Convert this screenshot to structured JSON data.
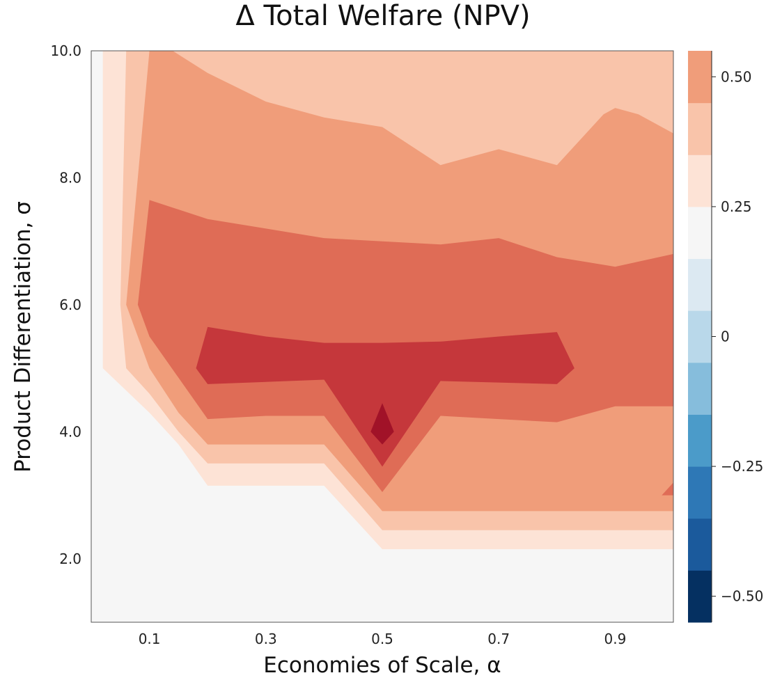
{
  "chart_data": {
    "type": "heatmap",
    "title": "Δ Total Welfare (NPV)",
    "xlabel": "Economies of Scale, α",
    "ylabel": "Product Differentiation, σ",
    "xlim": [
      0.0,
      1.0
    ],
    "ylim": [
      1.0,
      10.0
    ],
    "x_ticks": [
      0.1,
      0.3,
      0.5,
      0.7,
      0.9
    ],
    "x_tick_labels": [
      "0.1",
      "0.3",
      "0.5",
      "0.7",
      "0.9"
    ],
    "y_ticks": [
      2.0,
      4.0,
      6.0,
      8.0,
      10.0
    ],
    "y_tick_labels": [
      "2.0",
      "4.0",
      "6.0",
      "8.0",
      "10.0"
    ],
    "colorbar": {
      "range": [
        -0.55,
        0.55
      ],
      "ticks": [
        0.5,
        0.25,
        0,
        -0.25,
        -0.5
      ],
      "tick_labels": [
        "0.50",
        "0.25",
        "0",
        "−0.25",
        "−0.50"
      ],
      "levels": [
        -0.55,
        -0.45,
        -0.35,
        -0.25,
        -0.15,
        -0.05,
        0.05,
        0.15,
        0.25,
        0.35,
        0.45,
        0.55
      ],
      "colors": [
        "#053061",
        "#1b5a9c",
        "#2e78b6",
        "#4b9bc9",
        "#86bddc",
        "#b9d8ea",
        "#dce9f2",
        "#f6f6f6",
        "#fde3d6",
        "#f9c4aa",
        "#f09d7a",
        "#df6c56",
        "#c5373b",
        "#a11228",
        "#6a0020"
      ],
      "step_values": [
        -0.5,
        -0.43,
        -0.36,
        -0.29,
        -0.22,
        -0.14,
        -0.07,
        0.0,
        0.07,
        0.14,
        0.21,
        0.29,
        0.36,
        0.43,
        0.5
      ]
    },
    "regions": [
      {
        "level": 0.07,
        "polygon": [
          [
            0.02,
            10.0
          ],
          [
            1.0,
            10.0
          ],
          [
            1.0,
            2.15
          ],
          [
            0.5,
            2.15
          ],
          [
            0.4,
            3.15
          ],
          [
            0.2,
            3.15
          ],
          [
            0.15,
            3.8
          ],
          [
            0.1,
            4.3
          ],
          [
            0.02,
            5.0
          ]
        ]
      },
      {
        "level": 0.14,
        "polygon": [
          [
            0.06,
            10.0
          ],
          [
            1.0,
            10.0
          ],
          [
            1.0,
            2.45
          ],
          [
            0.5,
            2.45
          ],
          [
            0.4,
            3.5
          ],
          [
            0.2,
            3.5
          ],
          [
            0.15,
            4.0
          ],
          [
            0.1,
            4.6
          ],
          [
            0.06,
            5.0
          ],
          [
            0.05,
            6.0
          ]
        ]
      },
      {
        "level": 0.21,
        "polygon": [
          [
            0.1,
            10.0
          ],
          [
            1.0,
            10.0
          ],
          [
            1.0,
            2.75
          ],
          [
            0.5,
            2.75
          ],
          [
            0.4,
            3.8
          ],
          [
            0.2,
            3.8
          ],
          [
            0.15,
            4.3
          ],
          [
            0.1,
            5.0
          ],
          [
            0.06,
            6.0
          ]
        ]
      },
      {
        "level": 0.29,
        "polygon": [
          [
            0.1,
            7.65
          ],
          [
            0.2,
            7.35
          ],
          [
            0.3,
            7.2
          ],
          [
            0.4,
            7.05
          ],
          [
            0.5,
            7.0
          ],
          [
            0.6,
            6.95
          ],
          [
            0.7,
            7.05
          ],
          [
            0.8,
            6.75
          ],
          [
            0.9,
            6.6
          ],
          [
            1.0,
            6.8
          ],
          [
            1.0,
            4.4
          ],
          [
            0.9,
            4.4
          ],
          [
            0.8,
            4.15
          ],
          [
            0.7,
            4.2
          ],
          [
            0.6,
            4.25
          ],
          [
            0.5,
            3.05
          ],
          [
            0.4,
            4.25
          ],
          [
            0.3,
            4.25
          ],
          [
            0.2,
            4.2
          ],
          [
            0.1,
            5.5
          ],
          [
            0.08,
            6.0
          ]
        ]
      },
      {
        "level": 0.36,
        "polygon": [
          [
            0.2,
            5.65
          ],
          [
            0.3,
            5.5
          ],
          [
            0.4,
            5.4
          ],
          [
            0.5,
            5.4
          ],
          [
            0.6,
            5.42
          ],
          [
            0.7,
            5.5
          ],
          [
            0.8,
            5.57
          ],
          [
            0.83,
            5.0
          ],
          [
            0.8,
            4.75
          ],
          [
            0.6,
            4.8
          ],
          [
            0.5,
            3.45
          ],
          [
            0.4,
            4.82
          ],
          [
            0.2,
            4.75
          ],
          [
            0.18,
            5.0
          ]
        ]
      },
      {
        "level": 0.43,
        "polygon": [
          [
            0.5,
            4.45
          ],
          [
            0.52,
            4.0
          ],
          [
            0.5,
            3.8
          ],
          [
            0.48,
            4.0
          ]
        ]
      },
      {
        "level": 0.29,
        "polygon": [
          [
            1.0,
            3.2
          ],
          [
            1.0,
            3.0
          ],
          [
            0.98,
            3.0
          ]
        ]
      },
      {
        "level": 0.14,
        "polygon": [
          [
            0.6,
            9.65
          ],
          [
            0.67,
            9.0
          ],
          [
            0.6,
            8.55
          ],
          [
            0.55,
            9.0
          ]
        ]
      },
      {
        "level": 0.14,
        "polygon": [
          [
            0.8,
            9.85
          ],
          [
            0.84,
            9.0
          ],
          [
            0.8,
            8.6
          ],
          [
            0.73,
            9.0
          ]
        ]
      },
      {
        "level": 0.21,
        "polygon": [
          [
            1.0,
            8.7
          ],
          [
            0.94,
            9.0
          ],
          [
            0.9,
            9.1
          ],
          [
            0.88,
            9.0
          ],
          [
            0.8,
            8.2
          ],
          [
            0.7,
            8.45
          ],
          [
            0.6,
            8.2
          ],
          [
            0.5,
            8.8
          ],
          [
            0.4,
            8.95
          ],
          [
            0.3,
            9.2
          ],
          [
            0.2,
            9.65
          ],
          [
            0.14,
            10.0
          ],
          [
            1.0,
            10.0
          ]
        ]
      },
      {
        "level": 0.14,
        "polygon": [
          [
            1.0,
            10.0
          ],
          [
            0.14,
            10.0
          ],
          [
            0.2,
            9.65
          ],
          [
            0.3,
            9.2
          ],
          [
            0.4,
            8.95
          ],
          [
            0.5,
            8.8
          ],
          [
            0.6,
            8.2
          ],
          [
            0.7,
            8.45
          ],
          [
            0.8,
            8.2
          ],
          [
            0.88,
            9.0
          ],
          [
            0.9,
            9.1
          ],
          [
            0.94,
            9.0
          ],
          [
            1.0,
            8.7
          ]
        ]
      }
    ]
  }
}
